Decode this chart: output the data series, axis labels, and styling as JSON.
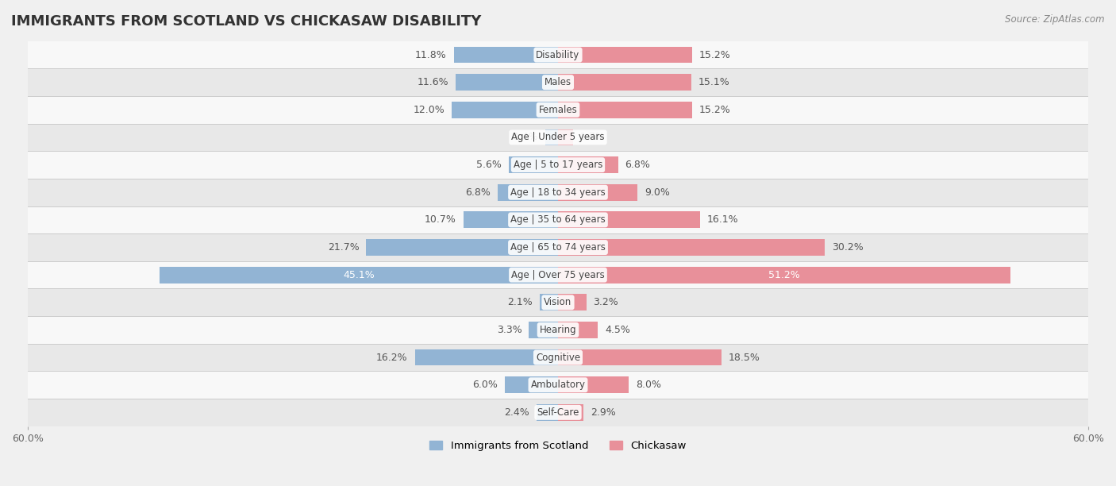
{
  "title": "IMMIGRANTS FROM SCOTLAND VS CHICKASAW DISABILITY",
  "source": "Source: ZipAtlas.com",
  "categories": [
    "Disability",
    "Males",
    "Females",
    "Age | Under 5 years",
    "Age | 5 to 17 years",
    "Age | 18 to 34 years",
    "Age | 35 to 64 years",
    "Age | 65 to 74 years",
    "Age | Over 75 years",
    "Vision",
    "Hearing",
    "Cognitive",
    "Ambulatory",
    "Self-Care"
  ],
  "scotland_values": [
    11.8,
    11.6,
    12.0,
    1.4,
    5.6,
    6.8,
    10.7,
    21.7,
    45.1,
    2.1,
    3.3,
    16.2,
    6.0,
    2.4
  ],
  "chickasaw_values": [
    15.2,
    15.1,
    15.2,
    1.7,
    6.8,
    9.0,
    16.1,
    30.2,
    51.2,
    3.2,
    4.5,
    18.5,
    8.0,
    2.9
  ],
  "scotland_color": "#92b4d4",
  "chickasaw_color": "#e8909a",
  "bar_height": 0.6,
  "xlim": 60.0,
  "axis_label": "60.0%",
  "background_color": "#f0f0f0",
  "row_bg_even": "#e8e8e8",
  "row_bg_odd": "#f8f8f8",
  "legend_scotland": "Immigrants from Scotland",
  "legend_chickasaw": "Chickasaw",
  "title_fontsize": 13,
  "label_fontsize": 9.0,
  "cat_fontsize": 8.5
}
